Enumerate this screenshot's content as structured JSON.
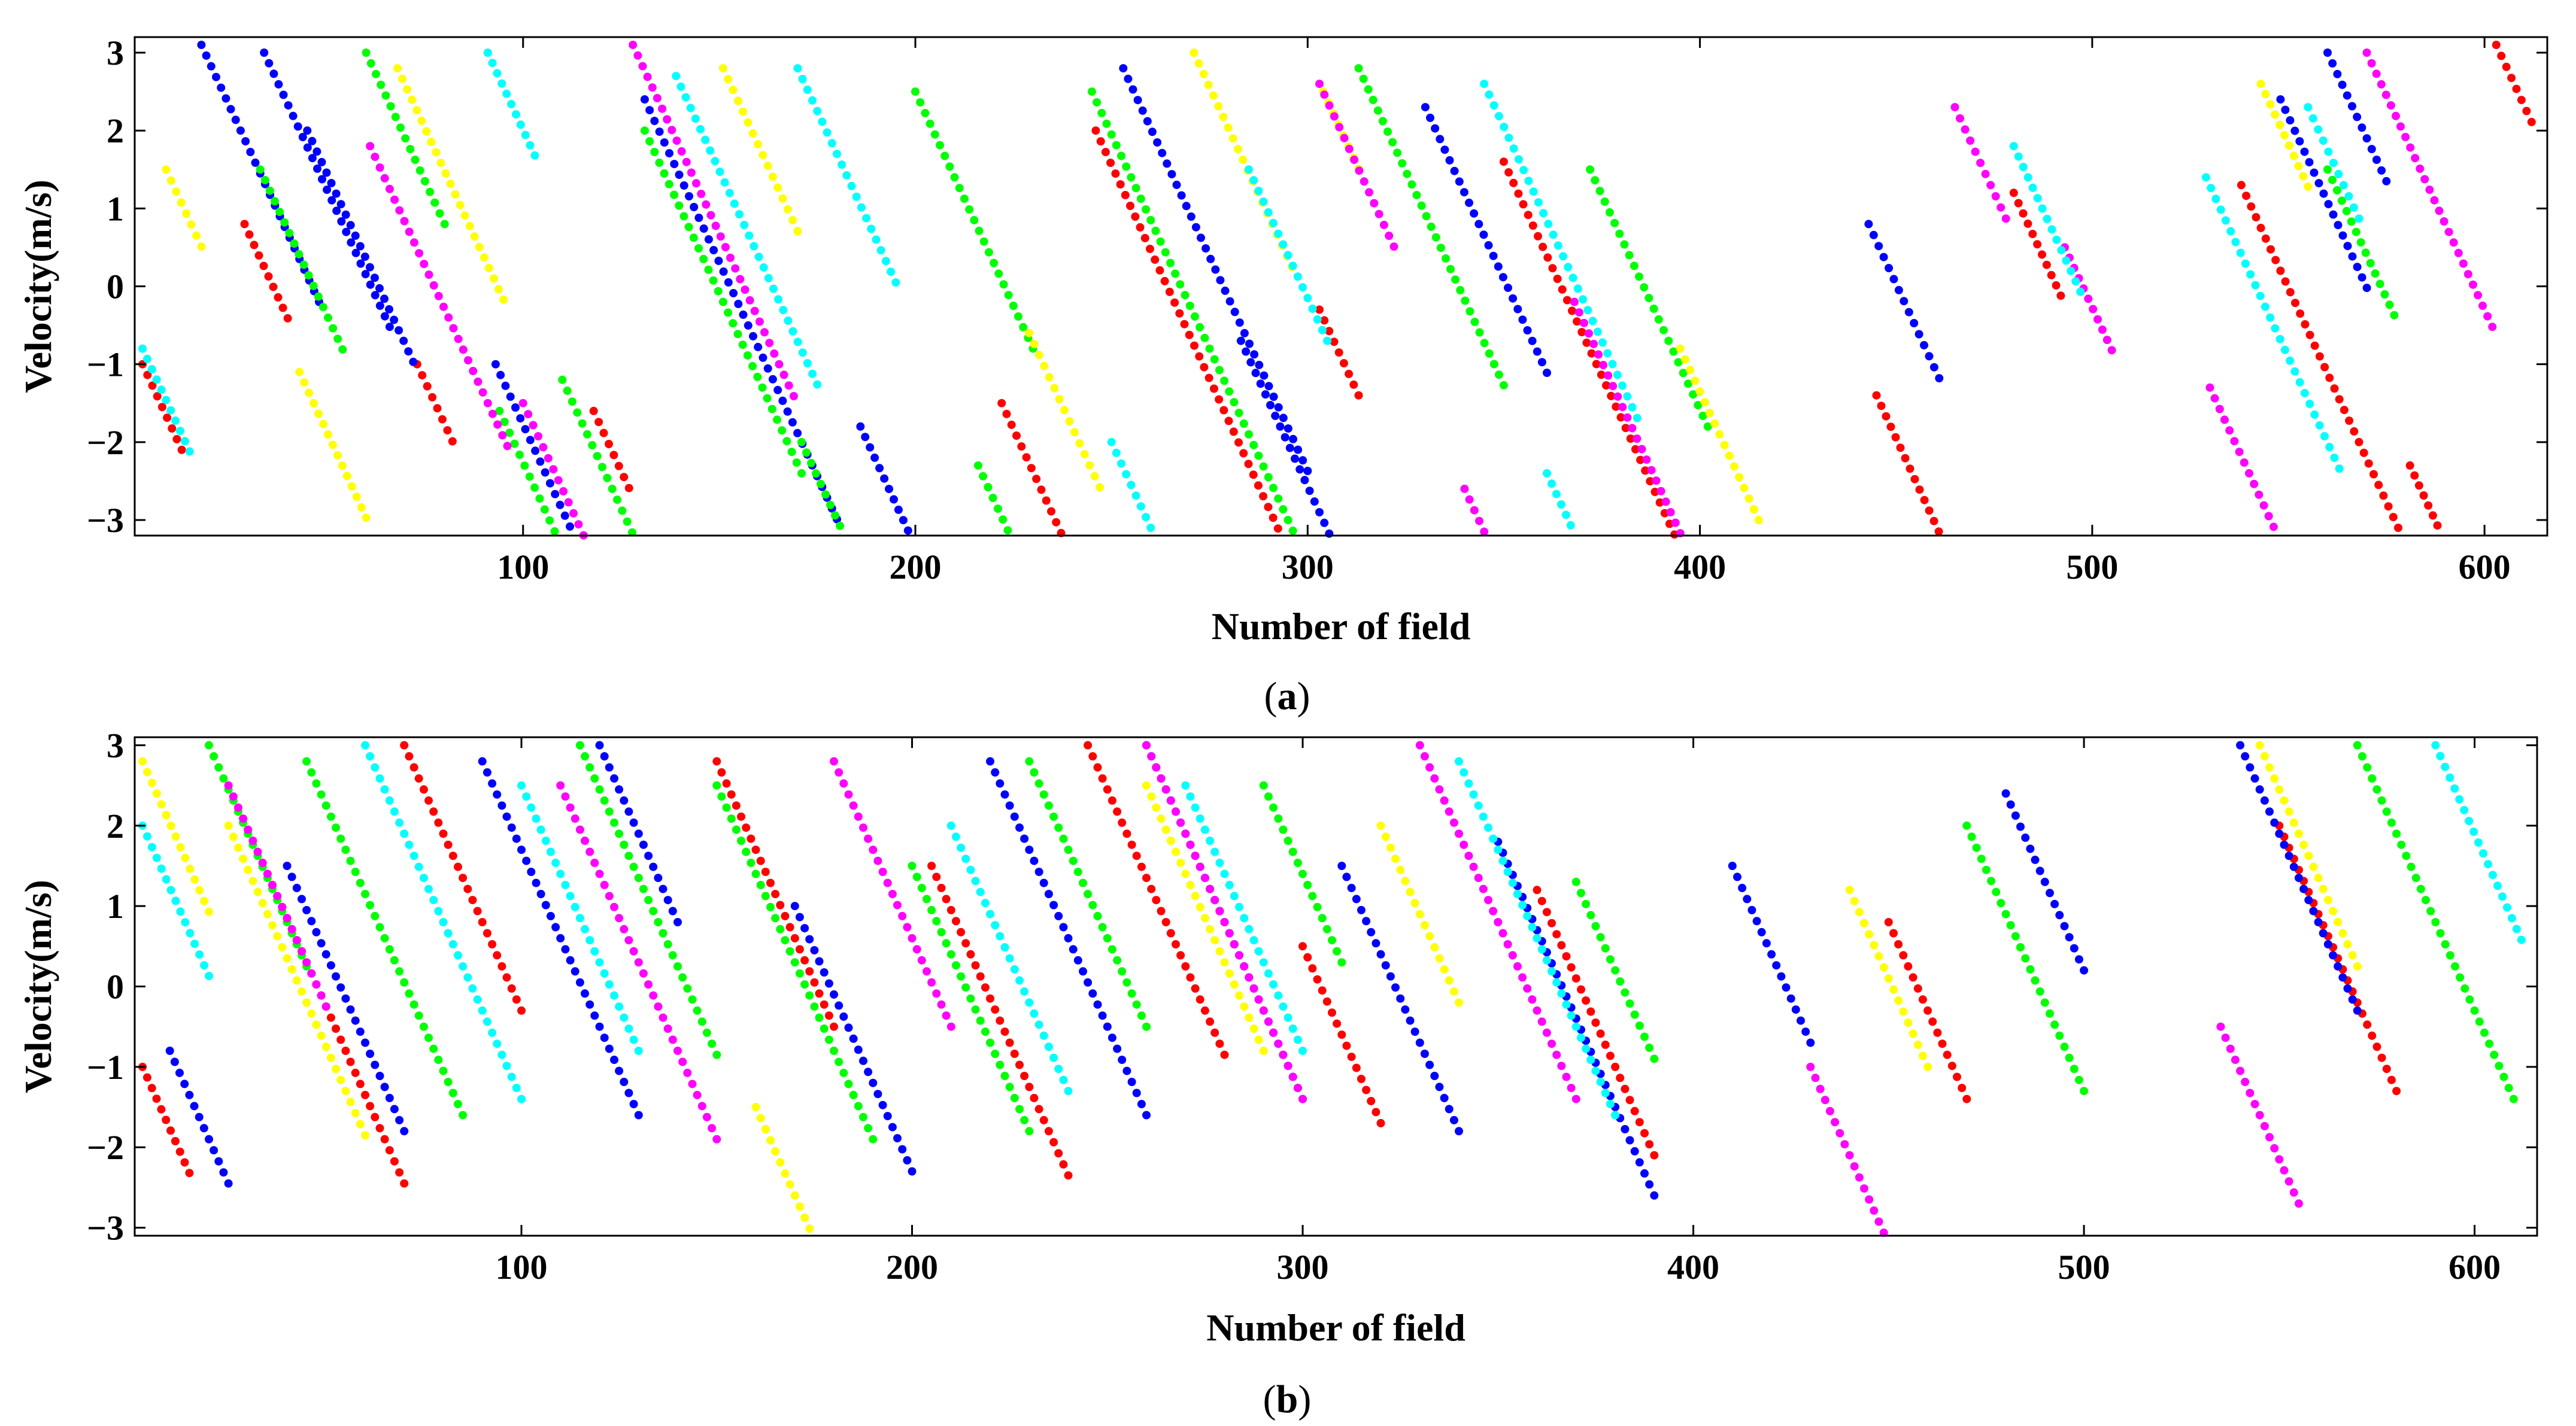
{
  "chart_data": [
    {
      "panel": "a",
      "caption_open": "(",
      "caption_letter": "a",
      "caption_close": ")",
      "type": "scatter",
      "xlabel": "Number of field",
      "ylabel": "Velocity(m/s)",
      "xlim": [
        1,
        616
      ],
      "ylim": [
        -3.2,
        3.2
      ],
      "xticks": [
        100,
        200,
        300,
        400,
        500,
        600
      ],
      "xtick_labels": [
        "100",
        "200",
        "300",
        "400",
        "500",
        "600"
      ],
      "yticks": [
        -3,
        -2,
        -1,
        0,
        1,
        2,
        3
      ],
      "ytick_labels": [
        "−3",
        "−2",
        "−1",
        "0",
        "1",
        "2",
        "3"
      ],
      "track_slope": -0.11,
      "note": "Each series is a set of velocity tracks (x = field number, y = velocity in m/s); each track has slope -0.11 m/s per field and is listed as [x_start, y_start, x_end].",
      "series": [
        {
          "name": "red",
          "color": "#ff0000",
          "tracks": [
            [
              3,
              -1.0,
              13
            ],
            [
              29,
              0.8,
              40
            ],
            [
              73,
              -1.0,
              82
            ],
            [
              118,
              -1.6,
              127
            ],
            [
              222,
              -1.5,
              246
            ],
            [
              246,
              2.0,
              305
            ],
            [
              303,
              -0.3,
              313
            ],
            [
              350,
              1.6,
              396
            ],
            [
              445,
              -1.4,
              467
            ],
            [
              480,
              1.2,
              492
            ],
            [
              538,
              1.3,
              578
            ],
            [
              581,
              -2.3,
              588
            ],
            [
              603,
              3.1,
              612
            ]
          ]
        },
        {
          "name": "blue",
          "color": "#0000ff",
          "tracks": [
            [
              18,
              3.1,
              48
            ],
            [
              34,
              3.0,
              66
            ],
            [
              45,
              2.0,
              72
            ],
            [
              93,
              -1.0,
              141
            ],
            [
              131,
              2.4,
              180
            ],
            [
              186,
              -1.8,
              203
            ],
            [
              253,
              2.8,
              300
            ],
            [
              283,
              -0.7,
              313
            ],
            [
              330,
              2.3,
              361
            ],
            [
              443,
              0.8,
              461
            ],
            [
              548,
              2.4,
              570
            ],
            [
              560,
              3.0,
              575
            ]
          ]
        },
        {
          "name": "green",
          "color": "#00ff00",
          "tracks": [
            [
              33,
              1.5,
              54
            ],
            [
              60,
              3.0,
              80
            ],
            [
              94,
              -1.6,
              117
            ],
            [
              110,
              -1.2,
              138
            ],
            [
              131,
              2.0,
              171
            ],
            [
              171,
              -2.0,
              193
            ],
            [
              200,
              2.5,
              230
            ],
            [
              216,
              -2.3,
              245
            ],
            [
              245,
              2.5,
              300
            ],
            [
              313,
              2.8,
              350
            ],
            [
              372,
              1.5,
              402
            ],
            [
              560,
              1.5,
              577
            ]
          ]
        },
        {
          "name": "yellow",
          "color": "#ffff00",
          "tracks": [
            [
              9,
              1.5,
              18
            ],
            [
              43,
              -1.1,
              60
            ],
            [
              68,
              2.8,
              95
            ],
            [
              151,
              2.8,
              170
            ],
            [
              229,
              -0.6,
              247
            ],
            [
              271,
              3.0,
              296
            ],
            [
              304,
              2.5,
              313
            ],
            [
              395,
              -0.8,
              415
            ],
            [
              543,
              2.6,
              555
            ]
          ]
        },
        {
          "name": "magenta",
          "color": "#ff00ff",
          "tracks": [
            [
              61,
              1.8,
              96
            ],
            [
              100,
              -1.5,
              118
            ],
            [
              128,
              3.1,
              169
            ],
            [
              303,
              2.6,
              322
            ],
            [
              340,
              -2.6,
              360
            ],
            [
              368,
              -0.2,
              395
            ],
            [
              465,
              2.3,
              478
            ],
            [
              493,
              0.5,
              505
            ],
            [
              530,
              -1.3,
              550
            ],
            [
              570,
              3.0,
              602
            ]
          ]
        },
        {
          "name": "cyan",
          "color": "#00ffff",
          "tracks": [
            [
              3,
              -0.8,
              15
            ],
            [
              91,
              3.0,
              103
            ],
            [
              139,
              2.7,
              175
            ],
            [
              170,
              2.8,
              195
            ],
            [
              250,
              -2.0,
              275
            ],
            [
              285,
              1.5,
              305
            ],
            [
              345,
              2.6,
              384
            ],
            [
              361,
              -2.4,
              378
            ],
            [
              480,
              1.8,
              497
            ],
            [
              529,
              1.4,
              563
            ],
            [
              555,
              2.3,
              568
            ]
          ]
        }
      ]
    },
    {
      "panel": "b",
      "caption_open": "(",
      "caption_letter": "b",
      "caption_close": ")",
      "type": "scatter",
      "xlabel": "Number of field",
      "ylabel": "Velocity(m/s)",
      "xlim": [
        1,
        616
      ],
      "ylim": [
        -3.1,
        3.1
      ],
      "xticks": [
        100,
        200,
        300,
        400,
        500,
        600
      ],
      "xtick_labels": [
        "100",
        "200",
        "300",
        "400",
        "500",
        "600"
      ],
      "yticks": [
        -3,
        -2,
        -1,
        0,
        1,
        2,
        3
      ],
      "ytick_labels": [
        "−3",
        "−2",
        "−1",
        "0",
        "1",
        "2",
        "3"
      ],
      "track_slope": -0.11,
      "note": "Each series is a set of velocity tracks (x = field number, y = velocity in m/s); each track has slope -0.11 m/s per field and is listed as [x_start, y_start, x_end].",
      "series": [
        {
          "name": "red",
          "color": "#ff0000",
          "tracks": [
            [
              3,
              -1.0,
              15
            ],
            [
              35,
              1.4,
              70
            ],
            [
              70,
              3.0,
              100
            ],
            [
              150,
              2.8,
              180
            ],
            [
              205,
              1.5,
              240
            ],
            [
              245,
              3.0,
              280
            ],
            [
              300,
              0.5,
              320
            ],
            [
              360,
              1.2,
              390
            ],
            [
              450,
              0.8,
              470
            ],
            [
              550,
              2.0,
              580
            ]
          ]
        },
        {
          "name": "blue",
          "color": "#0000ff",
          "tracks": [
            [
              10,
              -0.8,
              25
            ],
            [
              40,
              1.5,
              70
            ],
            [
              90,
              2.8,
              130
            ],
            [
              120,
              3.0,
              140
            ],
            [
              170,
              1.0,
              200
            ],
            [
              220,
              2.8,
              260
            ],
            [
              260,
              3.0,
              300
            ],
            [
              310,
              1.5,
              340
            ],
            [
              350,
              1.8,
              390
            ],
            [
              410,
              1.5,
              430
            ],
            [
              480,
              2.4,
              500
            ],
            [
              540,
              3.0,
              570
            ]
          ]
        },
        {
          "name": "green",
          "color": "#00ff00",
          "tracks": [
            [
              20,
              3.0,
              45
            ],
            [
              45,
              2.8,
              85
            ],
            [
              115,
              3.0,
              150
            ],
            [
              150,
              2.5,
              190
            ],
            [
              200,
              1.5,
              230
            ],
            [
              230,
              2.8,
              260
            ],
            [
              290,
              2.5,
              310
            ],
            [
              370,
              1.3,
              390
            ],
            [
              470,
              2.0,
              500
            ],
            [
              570,
              3.0,
              610
            ]
          ]
        },
        {
          "name": "yellow",
          "color": "#ffff00",
          "tracks": [
            [
              3,
              2.8,
              20
            ],
            [
              25,
              2.0,
              60
            ],
            [
              160,
              -1.5,
              180
            ],
            [
              260,
              2.5,
              290
            ],
            [
              320,
              2.0,
              340
            ],
            [
              440,
              1.2,
              460
            ],
            [
              545,
              3.0,
              570
            ]
          ]
        },
        {
          "name": "magenta",
          "color": "#ff00ff",
          "tracks": [
            [
              25,
              2.5,
              50
            ],
            [
              110,
              2.5,
              150
            ],
            [
              180,
              2.8,
              210
            ],
            [
              260,
              3.0,
              300
            ],
            [
              330,
              3.0,
              370
            ],
            [
              430,
              -1.0,
              460
            ],
            [
              535,
              -0.5,
              555
            ]
          ]
        },
        {
          "name": "cyan",
          "color": "#00ffff",
          "tracks": [
            [
              3,
              2.0,
              20
            ],
            [
              60,
              3.0,
              100
            ],
            [
              100,
              2.5,
              130
            ],
            [
              210,
              2.0,
              240
            ],
            [
              270,
              2.5,
              300
            ],
            [
              340,
              2.8,
              380
            ],
            [
              590,
              3.0,
              612
            ]
          ]
        }
      ]
    }
  ]
}
